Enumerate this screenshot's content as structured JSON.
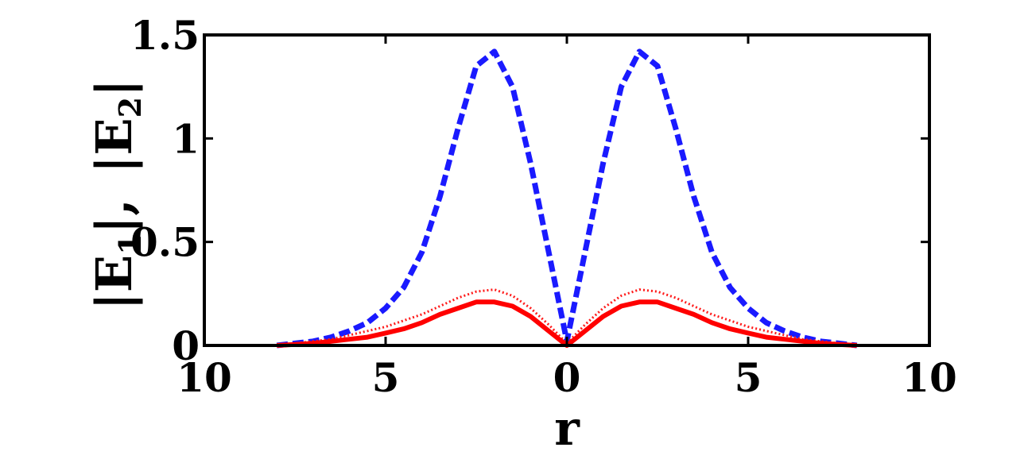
{
  "chart_data": {
    "type": "line",
    "xlabel": "r",
    "ylabel": "|E1|,  |E2|",
    "ylabel_parts": {
      "bar": "|",
      "e": "E",
      "sub1": "1",
      "sub2": "2",
      "comma": ","
    },
    "xlim": [
      -10,
      10
    ],
    "ylim": [
      0,
      1.5
    ],
    "xticks": [
      -10,
      -5,
      0,
      5,
      10
    ],
    "xtick_labels": [
      "10",
      "5",
      "0",
      "5",
      "10"
    ],
    "yticks": [
      0,
      0.5,
      1,
      1.5
    ],
    "ytick_labels": [
      "0",
      "0.5",
      "1",
      "1.5"
    ],
    "grid": false,
    "x": [
      -8,
      -7.5,
      -7,
      -6.5,
      -6,
      -5.5,
      -5,
      -4.5,
      -4,
      -3.5,
      -3,
      -2.5,
      -2,
      -1.5,
      -1,
      -0.5,
      0,
      0.5,
      1,
      1.5,
      2,
      2.5,
      3,
      3.5,
      4,
      4.5,
      5,
      5.5,
      6,
      6.5,
      7,
      7.5,
      8
    ],
    "series": [
      {
        "style": "dashed",
        "color": "#1a1aff",
        "values": [
          0.0,
          0.01,
          0.02,
          0.04,
          0.07,
          0.11,
          0.18,
          0.28,
          0.45,
          0.72,
          1.05,
          1.35,
          1.42,
          1.25,
          0.88,
          0.45,
          0.02,
          0.45,
          0.88,
          1.25,
          1.42,
          1.35,
          1.05,
          0.72,
          0.45,
          0.28,
          0.18,
          0.11,
          0.07,
          0.04,
          0.02,
          0.01,
          0.0
        ]
      },
      {
        "style": "dotted",
        "color": "#ff1a1a",
        "values": [
          0.0,
          0.01,
          0.02,
          0.03,
          0.05,
          0.07,
          0.09,
          0.12,
          0.15,
          0.19,
          0.23,
          0.26,
          0.27,
          0.24,
          0.18,
          0.1,
          0.01,
          0.1,
          0.18,
          0.24,
          0.27,
          0.26,
          0.23,
          0.19,
          0.15,
          0.12,
          0.09,
          0.07,
          0.05,
          0.03,
          0.02,
          0.01,
          0.0
        ]
      },
      {
        "style": "solid",
        "color": "#ff0000",
        "values": [
          0.0,
          0.005,
          0.01,
          0.02,
          0.03,
          0.04,
          0.06,
          0.08,
          0.11,
          0.15,
          0.18,
          0.21,
          0.21,
          0.19,
          0.14,
          0.07,
          0.0,
          0.07,
          0.14,
          0.19,
          0.21,
          0.21,
          0.18,
          0.15,
          0.11,
          0.08,
          0.06,
          0.04,
          0.03,
          0.02,
          0.01,
          0.005,
          0.0
        ]
      }
    ]
  }
}
